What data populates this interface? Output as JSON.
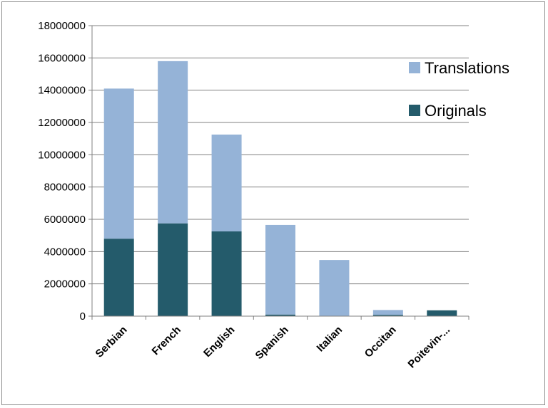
{
  "chart_data": {
    "type": "bar",
    "stacked": true,
    "categories": [
      "Serbian",
      "French",
      "English",
      "Spanish",
      "Italian",
      "Occitan",
      "Poitevin-..."
    ],
    "series": [
      {
        "name": "Originals",
        "color": "#245b6b",
        "values": [
          4800000,
          5750000,
          5250000,
          100000,
          0,
          80000,
          360000
        ]
      },
      {
        "name": "Translations",
        "color": "#95b3d7",
        "values": [
          9300000,
          10050000,
          6000000,
          5550000,
          3480000,
          300000,
          0
        ]
      }
    ],
    "ylim": [
      0,
      18000000
    ],
    "yticks": [
      0,
      2000000,
      4000000,
      6000000,
      8000000,
      10000000,
      12000000,
      14000000,
      16000000,
      18000000
    ],
    "grid": true,
    "legend_position": "right",
    "legend_order": [
      "Translations",
      "Originals"
    ],
    "axis_color": "#808080"
  }
}
